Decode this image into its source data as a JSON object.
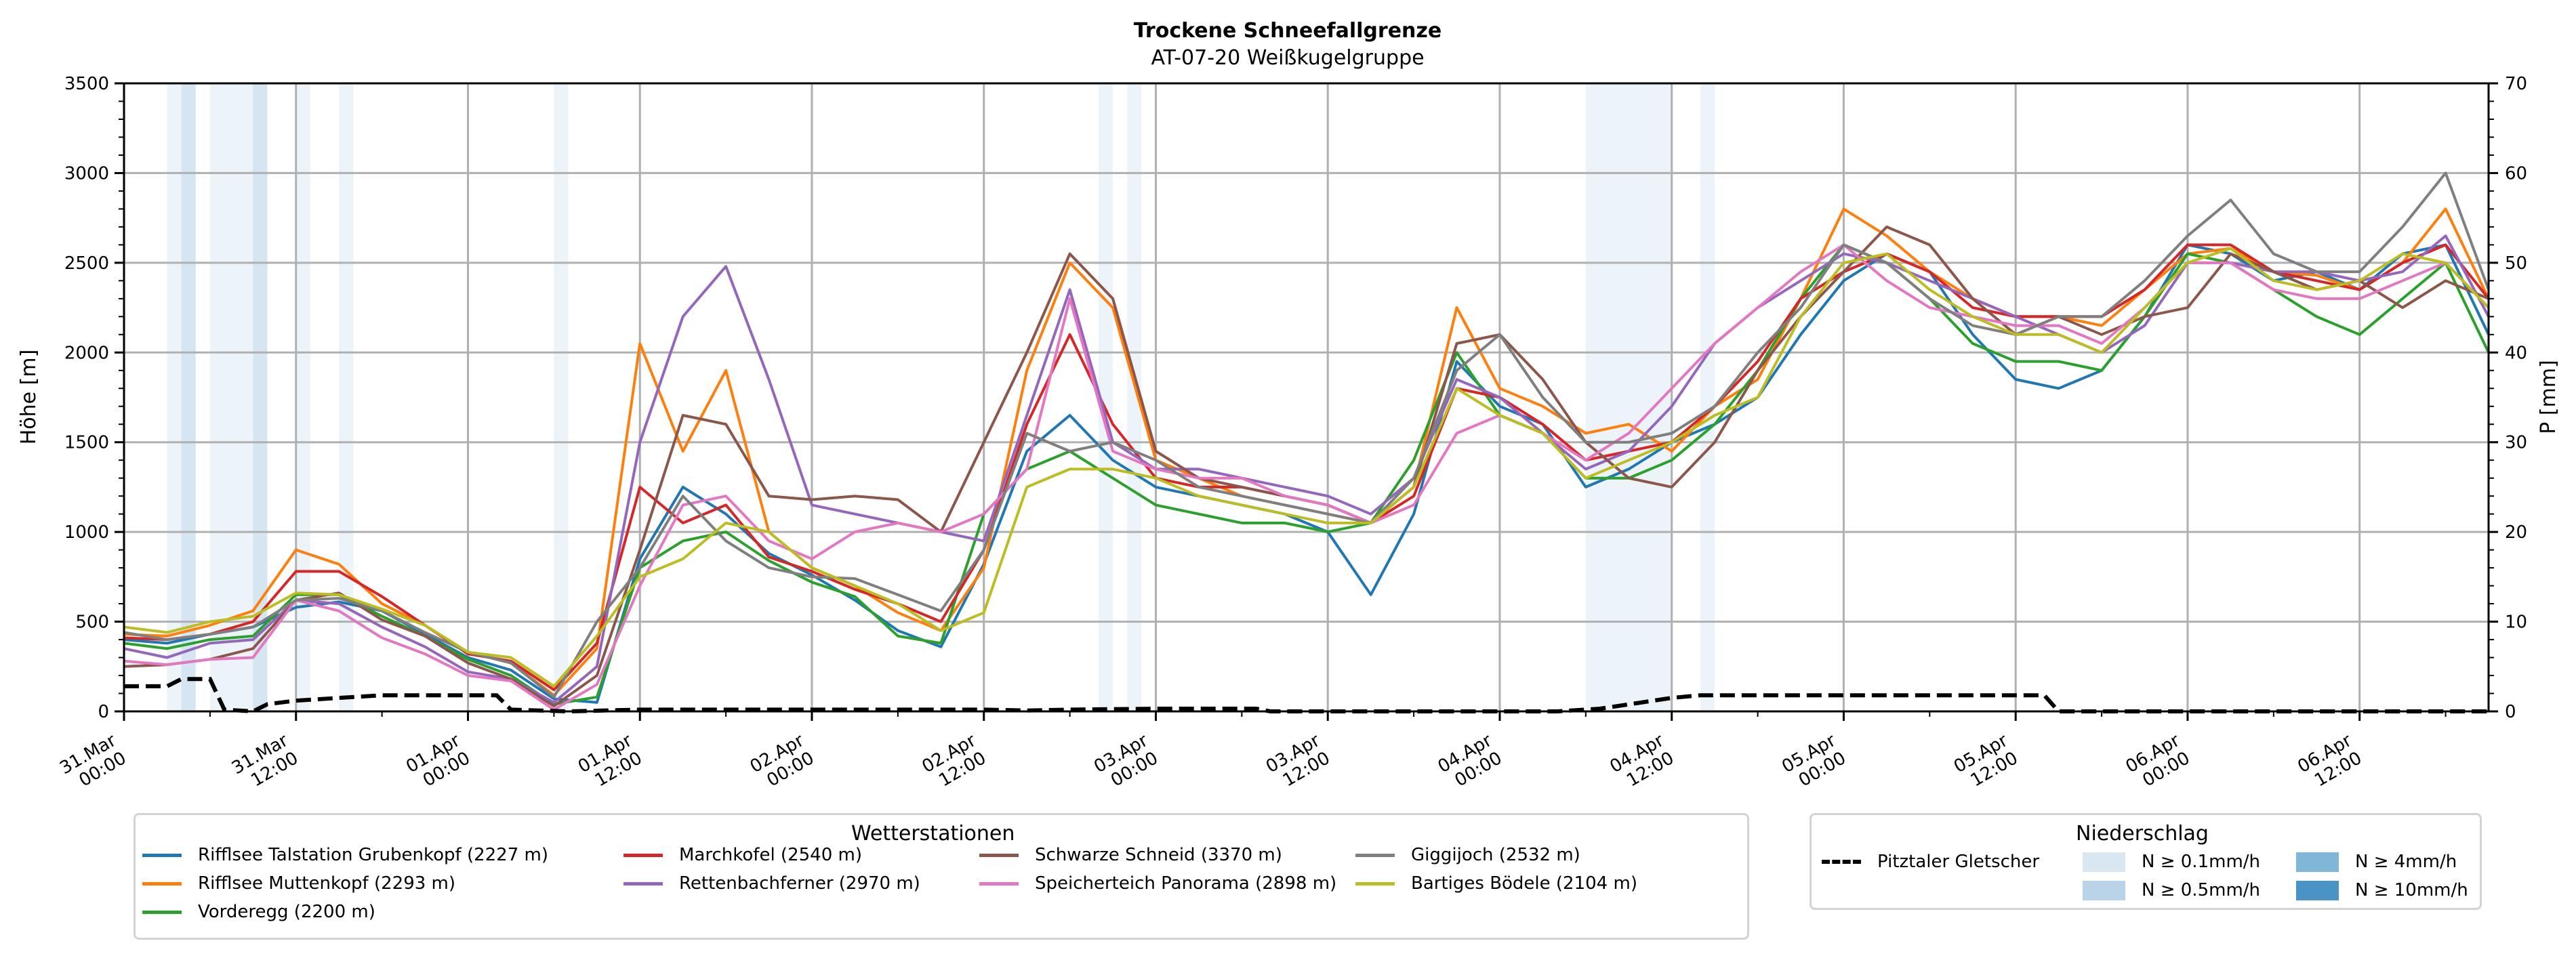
{
  "chart_data": {
    "type": "line",
    "title": "Trockene Schneefallgrenze",
    "subtitle": "AT-07-20 Weißkugelgruppe",
    "ylabel": "Höhe [m]",
    "y2label": "P [mm]",
    "ylim": [
      0,
      3500
    ],
    "y2lim": [
      0,
      70
    ],
    "yticks": [
      "0",
      "500",
      "1000",
      "1500",
      "2000",
      "2500",
      "3000",
      "3500"
    ],
    "y2ticks": [
      "0",
      "10",
      "20",
      "30",
      "40",
      "50",
      "60",
      "70"
    ],
    "x_unit": "hours since 31.Mar 00:00",
    "xlim": [
      0,
      165
    ],
    "xticks": [
      {
        "h": 0,
        "l1": "31.Mar",
        "l2": "00:00"
      },
      {
        "h": 12,
        "l1": "31.Mar",
        "l2": "12:00"
      },
      {
        "h": 24,
        "l1": "01.Apr",
        "l2": "00:00"
      },
      {
        "h": 36,
        "l1": "01.Apr",
        "l2": "12:00"
      },
      {
        "h": 48,
        "l1": "02.Apr",
        "l2": "00:00"
      },
      {
        "h": 60,
        "l1": "02.Apr",
        "l2": "12:00"
      },
      {
        "h": 72,
        "l1": "03.Apr",
        "l2": "00:00"
      },
      {
        "h": 84,
        "l1": "03.Apr",
        "l2": "12:00"
      },
      {
        "h": 96,
        "l1": "04.Apr",
        "l2": "00:00"
      },
      {
        "h": 108,
        "l1": "04.Apr",
        "l2": "12:00"
      },
      {
        "h": 120,
        "l1": "05.Apr",
        "l2": "00:00"
      },
      {
        "h": 132,
        "l1": "05.Apr",
        "l2": "12:00"
      },
      {
        "h": 144,
        "l1": "06.Apr",
        "l2": "00:00"
      },
      {
        "h": 156,
        "l1": "06.Apr",
        "l2": "12:00"
      }
    ],
    "grid": true,
    "x": [
      0,
      3,
      6,
      9,
      12,
      15,
      18,
      21,
      24,
      27,
      30,
      33,
      36,
      39,
      42,
      45,
      48,
      51,
      54,
      57,
      60,
      63,
      66,
      69,
      72,
      75,
      78,
      81,
      84,
      87,
      90,
      93,
      96,
      99,
      102,
      105,
      108,
      111,
      114,
      117,
      120,
      123,
      126,
      129,
      132,
      135,
      138,
      141,
      144,
      147,
      150,
      153,
      156,
      159,
      162,
      165
    ],
    "series": [
      {
        "name": "Rifflsee Talstation Grubenkopf (2227 m)",
        "color": "#1f77b4",
        "values": [
          400,
          380,
          430,
          470,
          580,
          610,
          560,
          430,
          300,
          230,
          70,
          50,
          850,
          1250,
          1100,
          880,
          760,
          620,
          450,
          360,
          820,
          1450,
          1650,
          1400,
          1250,
          1200,
          1150,
          1100,
          1000,
          650,
          1100,
          1950,
          1700,
          1600,
          1250,
          1350,
          1500,
          1600,
          1750,
          2100,
          2400,
          2550,
          2450,
          2100,
          1850,
          1800,
          1900,
          2200,
          2600,
          2550,
          2400,
          2450,
          2350,
          2550,
          2600,
          2100
        ]
      },
      {
        "name": "Rifflsee Muttenkopf (2293 m)",
        "color": "#ff7f0e",
        "values": [
          430,
          420,
          480,
          560,
          900,
          820,
          600,
          480,
          330,
          270,
          90,
          350,
          2050,
          1450,
          1900,
          1000,
          800,
          700,
          550,
          450,
          800,
          1900,
          2500,
          2250,
          1400,
          1300,
          1200,
          1150,
          1100,
          1050,
          1250,
          2250,
          1800,
          1700,
          1550,
          1600,
          1450,
          1700,
          1850,
          2300,
          2800,
          2650,
          2450,
          2300,
          2200,
          2200,
          2150,
          2350,
          2550,
          2580,
          2450,
          2430,
          2350,
          2500,
          2800,
          2300
        ]
      },
      {
        "name": "Vorderegg (2200 m)",
        "color": "#2ca02c",
        "values": [
          380,
          350,
          400,
          420,
          650,
          650,
          530,
          420,
          290,
          200,
          40,
          80,
          800,
          950,
          1000,
          840,
          720,
          640,
          420,
          380,
          1100,
          1350,
          1450,
          1300,
          1150,
          1100,
          1050,
          1050,
          1000,
          1050,
          1400,
          2000,
          1650,
          1550,
          1300,
          1300,
          1400,
          1600,
          1900,
          2300,
          2600,
          2500,
          2300,
          2050,
          1950,
          1950,
          1900,
          2200,
          2550,
          2500,
          2350,
          2200,
          2100,
          2300,
          2500,
          2000
        ]
      },
      {
        "name": "Marchkofel (2540 m)",
        "color": "#d62728",
        "values": [
          410,
          400,
          430,
          500,
          780,
          780,
          640,
          480,
          320,
          280,
          120,
          380,
          1250,
          1050,
          1150,
          860,
          780,
          680,
          600,
          500,
          900,
          1600,
          2100,
          1600,
          1300,
          1250,
          1250,
          1200,
          1150,
          1050,
          1200,
          1800,
          1750,
          1600,
          1400,
          1450,
          1500,
          1700,
          1950,
          2300,
          2450,
          2550,
          2450,
          2250,
          2200,
          2200,
          2200,
          2350,
          2600,
          2600,
          2450,
          2400,
          2350,
          2500,
          2600,
          2300
        ]
      },
      {
        "name": "Rettenbachferner (2970 m)",
        "color": "#9467bd",
        "values": [
          350,
          300,
          380,
          400,
          620,
          600,
          470,
          360,
          220,
          180,
          50,
          250,
          1500,
          2200,
          2480,
          1850,
          1150,
          1100,
          1050,
          1000,
          950,
          1650,
          2350,
          1500,
          1350,
          1350,
          1300,
          1250,
          1200,
          1100,
          1300,
          1850,
          1750,
          1550,
          1350,
          1450,
          1700,
          2050,
          2250,
          2400,
          2550,
          2500,
          2400,
          2300,
          2200,
          2100,
          2000,
          2150,
          2500,
          2500,
          2450,
          2450,
          2400,
          2450,
          2650,
          2200
        ]
      },
      {
        "name": "Schwarze Schneid (3370 m)",
        "color": "#8c564b",
        "values": [
          250,
          260,
          290,
          350,
          620,
          660,
          510,
          420,
          270,
          180,
          30,
          200,
          900,
          1650,
          1600,
          1200,
          1180,
          1200,
          1180,
          1000,
          1500,
          2000,
          2550,
          2300,
          1450,
          1300,
          1250,
          1200,
          1150,
          1050,
          1250,
          2050,
          2100,
          1850,
          1500,
          1300,
          1250,
          1500,
          1900,
          2200,
          2450,
          2700,
          2600,
          2300,
          2100,
          2200,
          2100,
          2200,
          2250,
          2550,
          2450,
          2350,
          2400,
          2250,
          2400,
          2300
        ]
      },
      {
        "name": "Speicherteich Panorama (2898 m)",
        "color": "#e377c2",
        "values": [
          280,
          260,
          290,
          300,
          620,
          560,
          410,
          320,
          200,
          170,
          10,
          150,
          700,
          1150,
          1200,
          950,
          850,
          1000,
          1050,
          1000,
          1100,
          1350,
          2300,
          1450,
          1350,
          1300,
          1300,
          1200,
          1150,
          1050,
          1150,
          1550,
          1650,
          1550,
          1400,
          1550,
          1800,
          2050,
          2250,
          2450,
          2600,
          2400,
          2250,
          2200,
          2150,
          2150,
          2050,
          2250,
          2500,
          2500,
          2350,
          2300,
          2300,
          2400,
          2500,
          2250
        ]
      },
      {
        "name": "Giggijoch (2532 m)",
        "color": "#7f7f7f",
        "values": [
          440,
          400,
          430,
          470,
          620,
          630,
          560,
          440,
          330,
          270,
          80,
          500,
          800,
          1200,
          950,
          800,
          750,
          740,
          650,
          560,
          900,
          1550,
          1450,
          1500,
          1400,
          1250,
          1200,
          1150,
          1100,
          1050,
          1300,
          1900,
          2100,
          1750,
          1500,
          1500,
          1550,
          1700,
          2000,
          2250,
          2600,
          2500,
          2300,
          2150,
          2100,
          2200,
          2200,
          2400,
          2650,
          2850,
          2550,
          2450,
          2450,
          2700,
          3000,
          2350
        ]
      },
      {
        "name": "Bartiges Bödele (2104 m)",
        "color": "#bcbd22",
        "values": [
          470,
          440,
          500,
          530,
          660,
          650,
          570,
          480,
          330,
          300,
          140,
          420,
          750,
          850,
          1050,
          1000,
          800,
          700,
          600,
          450,
          550,
          1250,
          1350,
          1350,
          1300,
          1200,
          1150,
          1100,
          1050,
          1050,
          1250,
          1800,
          1650,
          1550,
          1300,
          1400,
          1500,
          1650,
          1750,
          2200,
          2500,
          2550,
          2350,
          2200,
          2100,
          2100,
          2000,
          2250,
          2500,
          2580,
          2400,
          2350,
          2400,
          2550,
          2500,
          2250
        ]
      }
    ],
    "precip_series": {
      "name": "Pitztaler Gletscher",
      "color": "#000000",
      "axis": "y2",
      "unit": "mm",
      "x": [
        0,
        3,
        4,
        6,
        7,
        9,
        10,
        12,
        15,
        18,
        24,
        26,
        27,
        31,
        36,
        54,
        60,
        63,
        66,
        72,
        79,
        80,
        100,
        103,
        108,
        110,
        132,
        134,
        135,
        165
      ],
      "values": [
        2.8,
        2.8,
        3.6,
        3.6,
        0.2,
        0,
        0.8,
        1.2,
        1.5,
        1.8,
        1.8,
        1.8,
        0.2,
        0,
        0.2,
        0.2,
        0.2,
        0.1,
        0.2,
        0.3,
        0.3,
        0,
        0,
        0.3,
        1.5,
        1.8,
        1.8,
        1.8,
        0,
        0
      ]
    },
    "precip_bands": [
      {
        "start": 3,
        "end": 4,
        "level": "N ≥ 0.1mm/h"
      },
      {
        "start": 4,
        "end": 5,
        "level": "N ≥ 0.5mm/h"
      },
      {
        "start": 6,
        "end": 9,
        "level": "N ≥ 0.1mm/h"
      },
      {
        "start": 9,
        "end": 10,
        "level": "N ≥ 0.5mm/h"
      },
      {
        "start": 12,
        "end": 13,
        "level": "N ≥ 0.1mm/h"
      },
      {
        "start": 15,
        "end": 16,
        "level": "N ≥ 0.1mm/h"
      },
      {
        "start": 30,
        "end": 31,
        "level": "N ≥ 0.1mm/h"
      },
      {
        "start": 68,
        "end": 69,
        "level": "N ≥ 0.1mm/h"
      },
      {
        "start": 70,
        "end": 71,
        "level": "N ≥ 0.1mm/h"
      },
      {
        "start": 102,
        "end": 108,
        "level": "N ≥ 0.1mm/h"
      },
      {
        "start": 110,
        "end": 111,
        "level": "N ≥ 0.1mm/h"
      }
    ],
    "legend_stations": {
      "title": "Wetterstationen",
      "placement": "bottom-left"
    },
    "legend_precip": {
      "title": "Niederschlag",
      "placement": "bottom-right",
      "line_label": "Pitztaler Gletscher",
      "levels": [
        {
          "label": "N ≥ 0.1mm/h",
          "color": "#d9e7f3"
        },
        {
          "label": "N ≥ 0.5mm/h",
          "color": "#b9d4e9"
        },
        {
          "label": "N ≥ 4mm/h",
          "color": "#80b6d8"
        },
        {
          "label": "N ≥ 10mm/h",
          "color": "#4993c7"
        }
      ]
    }
  }
}
